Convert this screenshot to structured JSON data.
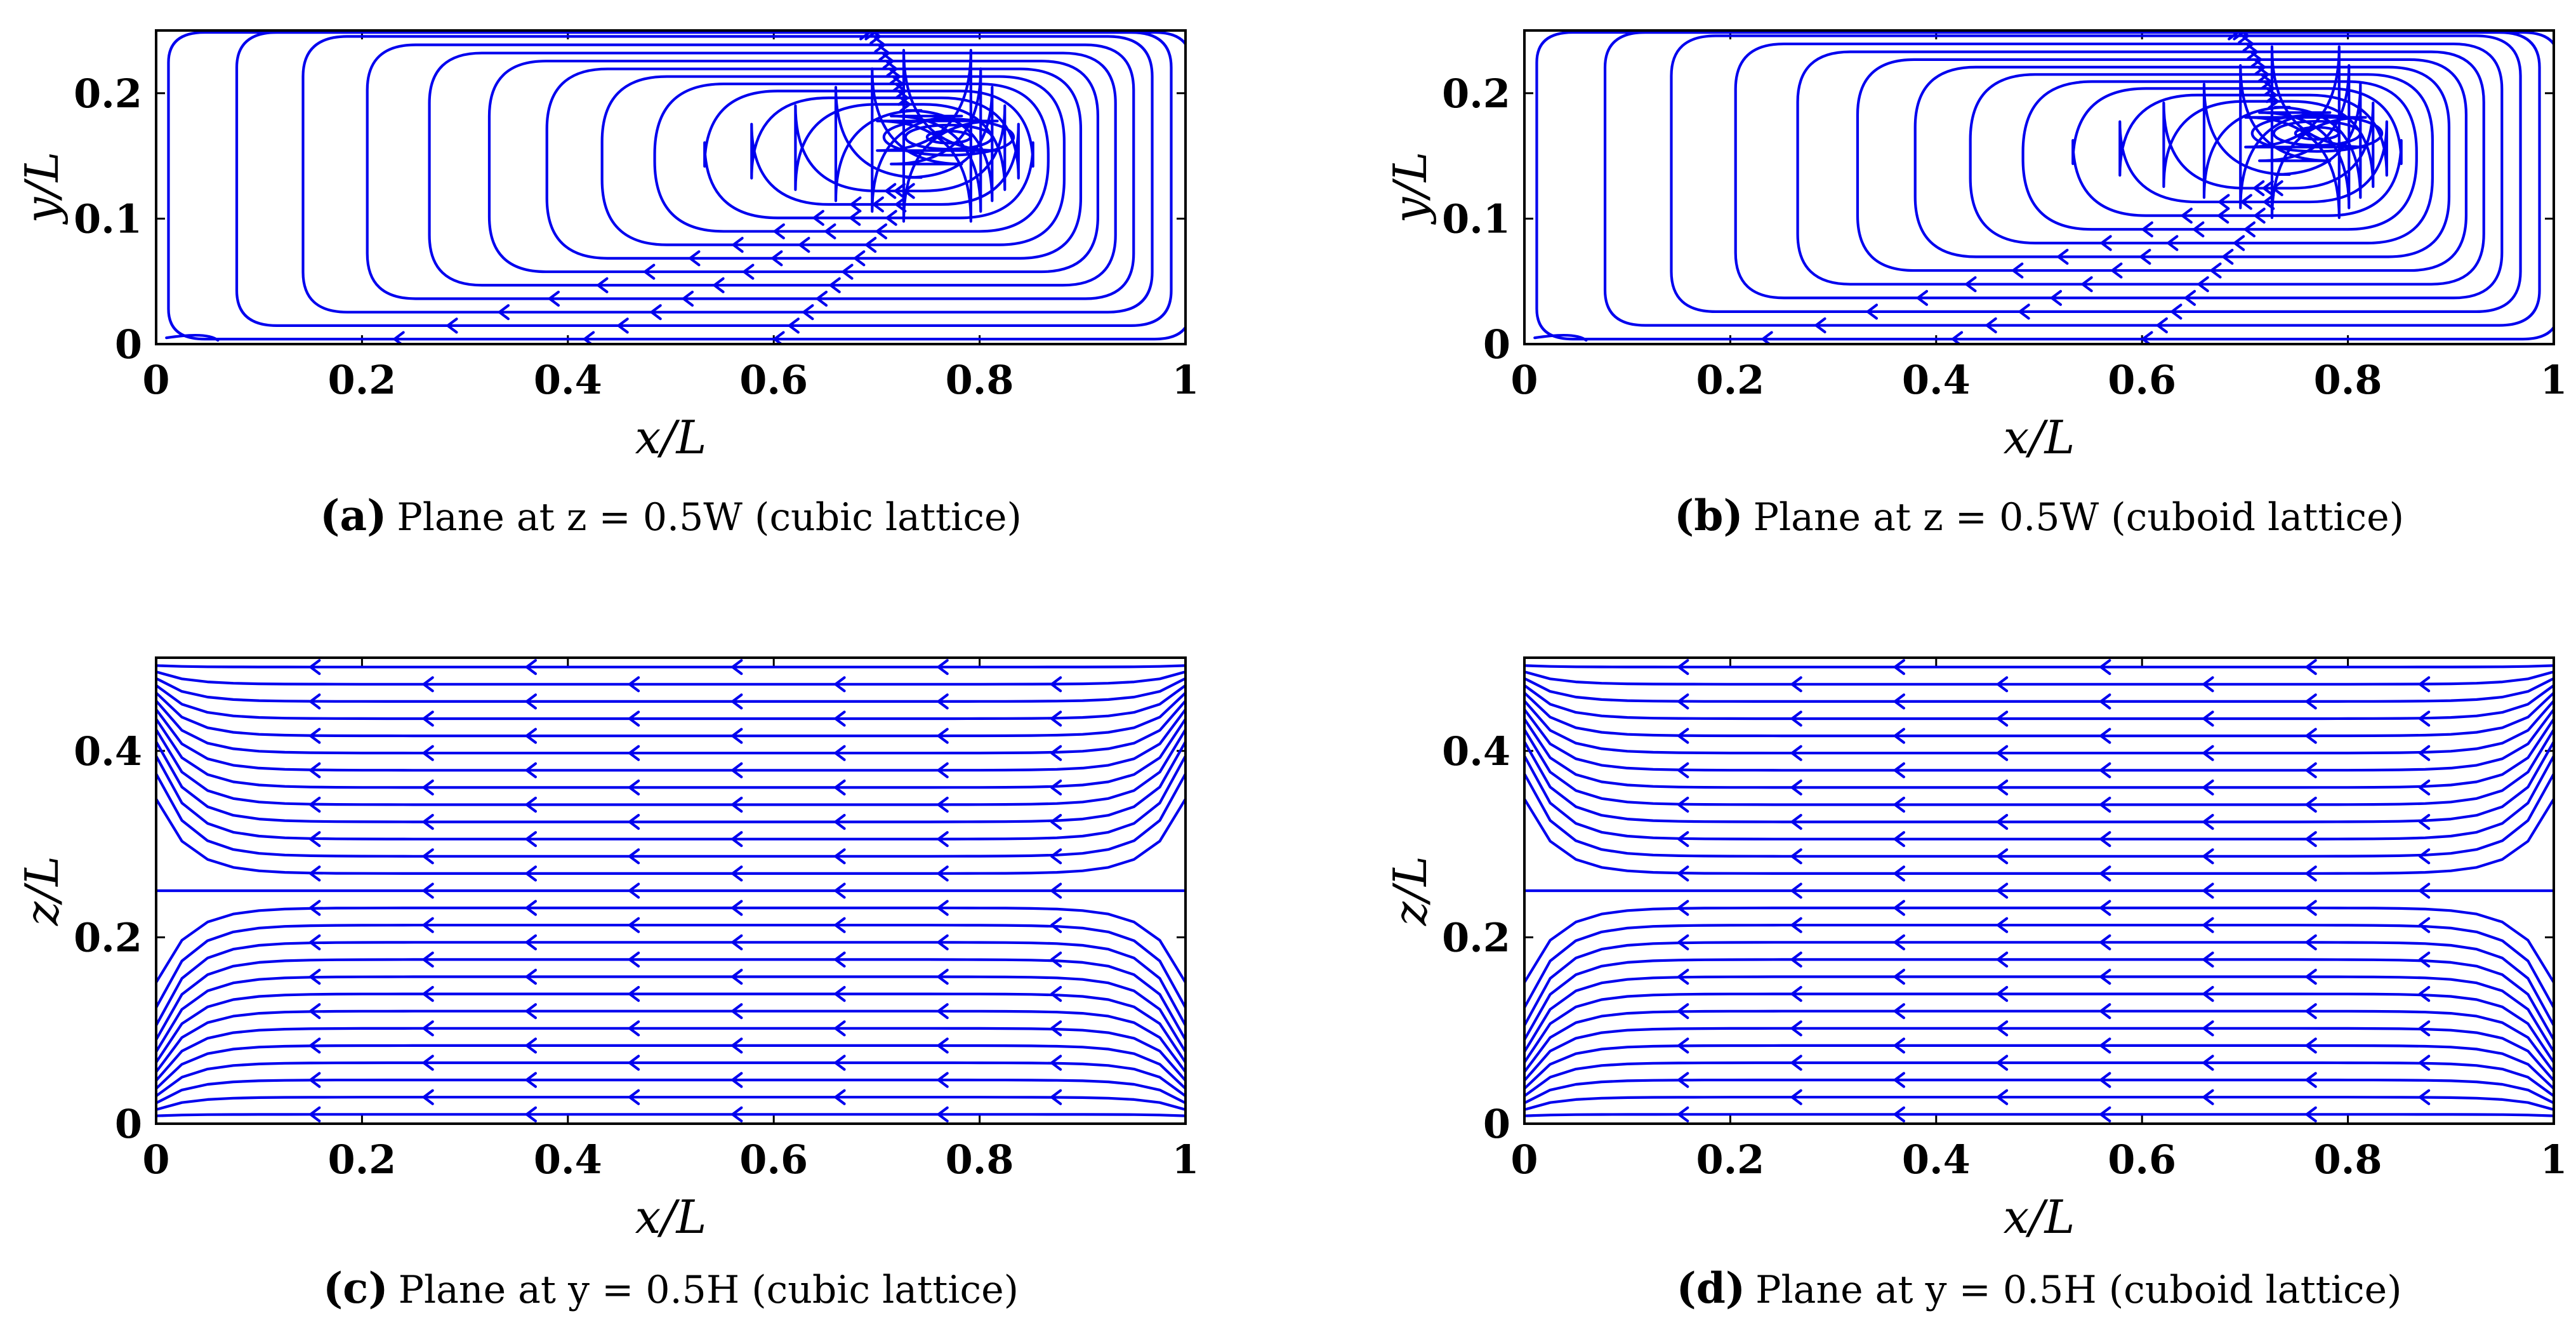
{
  "chart_data": [
    {
      "id": "a",
      "type": "streamline",
      "plane": "xy",
      "caption_letter": "(a)",
      "caption_text": "Plane at z = 0.5W (cubic lattice)",
      "xlabel": "x/L",
      "ylabel": "y/L",
      "xlim": [
        0,
        1
      ],
      "ylim": [
        0,
        0.25
      ],
      "xticks": [
        "0",
        "0.2",
        "0.4",
        "0.6",
        "0.8",
        "1"
      ],
      "yticks": [
        "0",
        "0.1",
        "0.2"
      ],
      "vortex_center": [
        0.77,
        0.165
      ],
      "flow_direction_bottom": "negative-x",
      "line_color": "#0000ee"
    },
    {
      "id": "b",
      "type": "streamline",
      "plane": "xy",
      "caption_letter": "(b)",
      "caption_text": "Plane at z = 0.5W (cuboid lattice)",
      "xlabel": "x/L",
      "ylabel": "y/L",
      "xlim": [
        0,
        1
      ],
      "ylim": [
        0,
        0.25
      ],
      "xticks": [
        "0",
        "0.2",
        "0.4",
        "0.6",
        "0.8",
        "1"
      ],
      "yticks": [
        "0",
        "0.1",
        "0.2"
      ],
      "vortex_center": [
        0.77,
        0.168
      ],
      "flow_direction_bottom": "negative-x",
      "line_color": "#0000ee"
    },
    {
      "id": "c",
      "type": "streamline",
      "plane": "xz",
      "caption_letter": "(c)",
      "caption_text": "Plane at y = 0.5H (cubic lattice)",
      "xlabel": "x/L",
      "ylabel": "z/L",
      "xlim": [
        0,
        1
      ],
      "ylim": [
        0,
        0.5
      ],
      "xticks": [
        "0",
        "0.2",
        "0.4",
        "0.6",
        "0.8",
        "1"
      ],
      "yticks": [
        "0",
        "0.2",
        "0.4"
      ],
      "flow_direction": "negative-x",
      "line_color": "#0000ee"
    },
    {
      "id": "d",
      "type": "streamline",
      "plane": "xz",
      "caption_letter": "(d)",
      "caption_text": "Plane at y = 0.5H (cuboid lattice)",
      "xlabel": "x/L",
      "ylabel": "z/L",
      "xlim": [
        0,
        1
      ],
      "ylim": [
        0,
        0.5
      ],
      "xticks": [
        "0",
        "0.2",
        "0.4",
        "0.6",
        "0.8",
        "1"
      ],
      "yticks": [
        "0",
        "0.2",
        "0.4"
      ],
      "flow_direction": "negative-x",
      "line_color": "#0000ee"
    }
  ]
}
